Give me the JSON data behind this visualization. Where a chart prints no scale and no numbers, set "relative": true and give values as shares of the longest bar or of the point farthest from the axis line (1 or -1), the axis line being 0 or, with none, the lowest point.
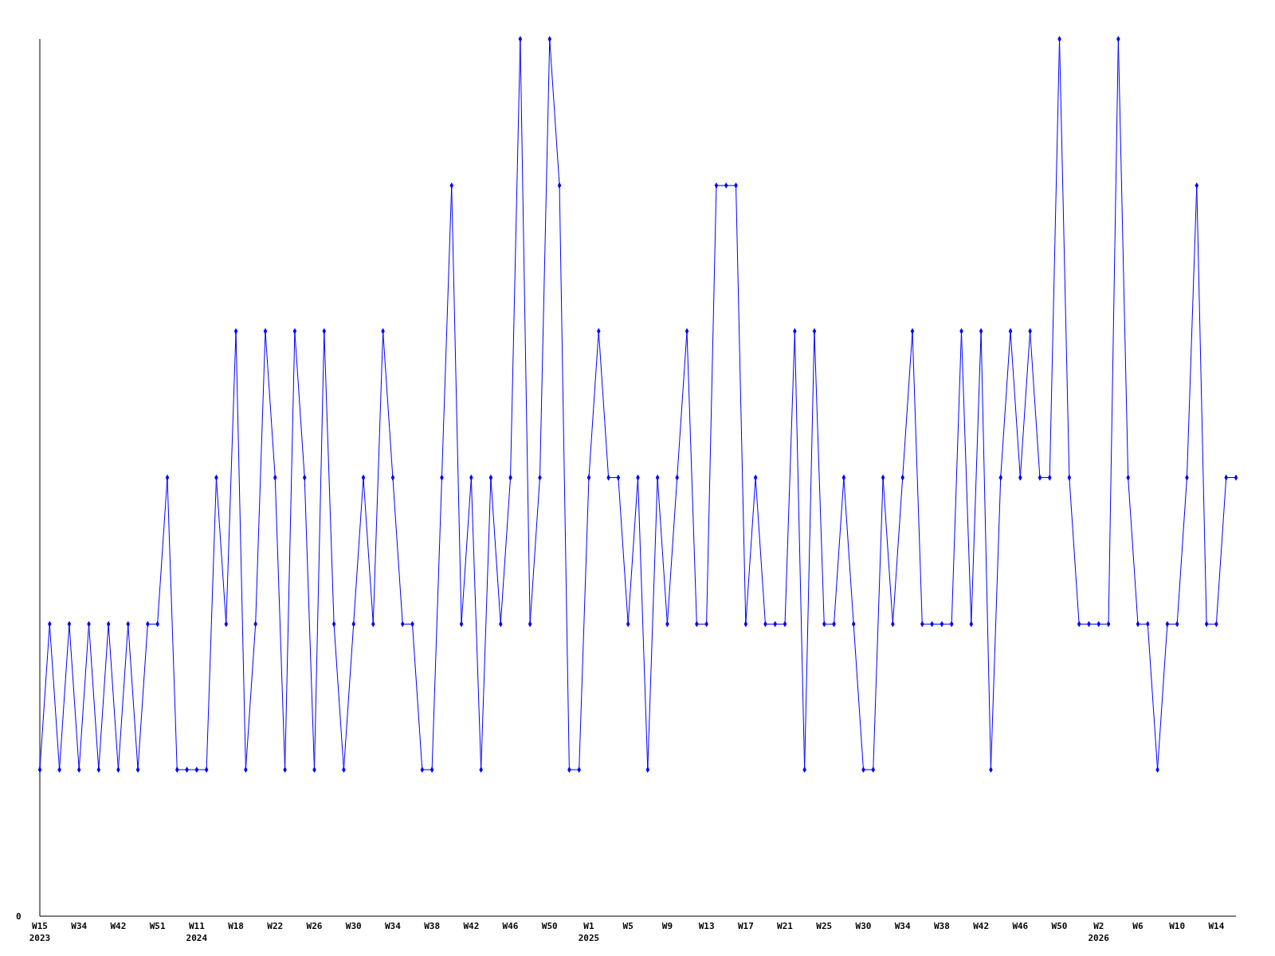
{
  "chart_data": {
    "type": "line",
    "relative": true,
    "marker": "diamond",
    "categories": [
      "W15\n2023",
      null,
      null,
      null,
      "W34",
      null,
      null,
      null,
      "W42",
      null,
      null,
      null,
      "W51",
      null,
      null,
      null,
      "W11\n2024",
      null,
      null,
      null,
      "W18",
      null,
      null,
      null,
      "W22",
      null,
      null,
      null,
      "W26",
      null,
      null,
      null,
      "W30",
      null,
      null,
      null,
      "W34",
      null,
      null,
      null,
      "W38",
      null,
      null,
      null,
      "W42",
      null,
      null,
      null,
      "W46",
      null,
      null,
      null,
      "W50",
      null,
      null,
      null,
      "W1\n2025",
      null,
      null,
      null,
      "W5",
      null,
      null,
      null,
      "W9",
      null,
      null,
      null,
      "W13",
      null,
      null,
      null,
      "W17",
      null,
      null,
      null,
      "W21",
      null,
      null,
      null,
      "W25",
      null,
      null,
      null,
      "W30",
      null,
      null,
      null,
      "W34",
      null,
      null,
      null,
      "W38",
      null,
      null,
      null,
      "W42",
      null,
      null,
      null,
      "W46",
      null,
      null,
      null,
      "W50",
      null,
      null,
      null,
      "W2\n2026",
      null,
      null,
      null,
      "W6",
      null,
      null,
      null,
      "W10",
      null,
      null,
      null,
      "W14",
      null,
      null
    ],
    "series": [
      {
        "color": "#0000ff",
        "values": [
          0.167,
          0.333,
          0.167,
          0.333,
          0.167,
          0.333,
          0.167,
          0.333,
          0.167,
          0.333,
          0.167,
          0.333,
          0.333,
          0.5,
          0.167,
          0.167,
          0.167,
          0.167,
          0.5,
          0.333,
          0.667,
          0.167,
          0.333,
          0.667,
          0.5,
          0.167,
          0.667,
          0.5,
          0.167,
          0.667,
          0.333,
          0.167,
          0.333,
          0.5,
          0.333,
          0.667,
          0.5,
          0.333,
          0.333,
          0.167,
          0.167,
          0.5,
          0.833,
          0.333,
          0.5,
          0.167,
          0.5,
          0.333,
          0.5,
          1,
          0.333,
          0.5,
          1,
          0.833,
          0.167,
          0.167,
          0.5,
          0.667,
          0.5,
          0.5,
          0.333,
          0.5,
          0.167,
          0.5,
          0.333,
          0.5,
          0.667,
          0.333,
          0.333,
          0.833,
          0.833,
          0.833,
          0.333,
          0.5,
          0.333,
          0.333,
          0.333,
          0.667,
          0.167,
          0.667,
          0.333,
          0.333,
          0.5,
          0.333,
          0.167,
          0.167,
          0.5,
          0.333,
          0.5,
          0.667,
          0.333,
          0.333,
          0.333,
          0.333,
          0.667,
          0.333,
          0.667,
          0.167,
          0.5,
          0.667,
          0.5,
          0.667,
          0.5,
          0.5,
          1,
          0.5,
          0.333,
          0.333,
          0.333,
          0.333,
          1,
          0.5,
          0.333,
          0.333,
          0.167,
          0.333,
          0.333,
          0.5,
          0.833,
          0.333,
          0.333,
          0.5,
          0.5
        ]
      }
    ],
    "annotations": [
      "0"
    ]
  }
}
